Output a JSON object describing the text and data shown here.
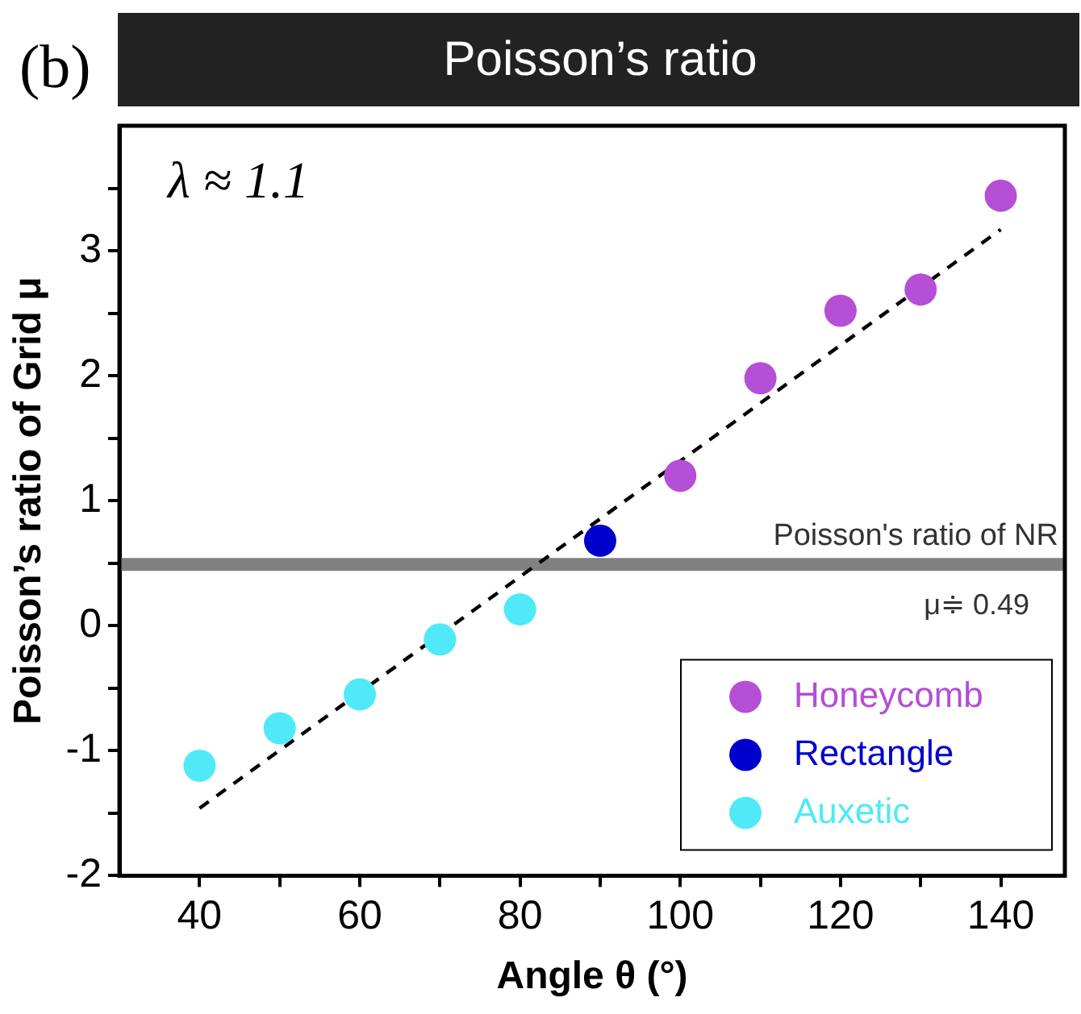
{
  "chart_data": {
    "type": "scatter",
    "title": "Poisson’s ratio",
    "xlabel": "Angle θ (°)",
    "ylabel": "Poisson’s ratio of Grid μ",
    "annotations": [
      "(b)",
      "λ ≈ 1.1",
      "μ≑ 0.49"
    ],
    "series": [
      {
        "name": "Honeycomb",
        "color": "#b44fd6",
        "x": [
          100,
          110,
          120,
          130,
          140
        ],
        "values": [
          1.2,
          1.98,
          2.52,
          2.69,
          3.44
        ]
      },
      {
        "name": "Rectangle",
        "color": "#0000cc",
        "x": [
          90
        ],
        "values": [
          0.68
        ]
      },
      {
        "name": "Auxetic",
        "color": "#4fe9f7",
        "x": [
          40,
          50,
          60,
          70,
          80
        ],
        "values": [
          -1.12,
          -0.82,
          -0.55,
          -0.11,
          0.13
        ]
      },
      {
        "type": "line",
        "color": "#000000",
        "line_style": "dashed",
        "marker": "none",
        "x": [
          40,
          140
        ],
        "values": [
          -1.46,
          3.17
        ]
      }
    ],
    "ref_lines": [
      {
        "axis": "y",
        "value": 0.49,
        "label": "Poisson's ratio of NR",
        "color": "#808080"
      }
    ],
    "xlim": [
      30,
      148
    ],
    "xticks": [
      40,
      {
        "value": 50,
        "label": null
      },
      60,
      {
        "value": 70,
        "label": null
      },
      80,
      {
        "value": 90,
        "label": null
      },
      100,
      {
        "value": 110,
        "label": null
      },
      120,
      {
        "value": 130,
        "label": null
      },
      140
    ],
    "ylim": [
      -2,
      4
    ],
    "yticks": [
      -2,
      {
        "value": -1.5,
        "label": null
      },
      -1,
      {
        "value": -0.5,
        "label": null
      },
      0,
      {
        "value": 0.5,
        "label": null
      },
      1,
      {
        "value": 1.5,
        "label": null
      },
      2,
      {
        "value": 2.5,
        "label": null
      },
      3,
      {
        "value": 3.5,
        "label": null
      }
    ],
    "grid": false,
    "legend": "bottom right",
    "marker": "circle"
  }
}
